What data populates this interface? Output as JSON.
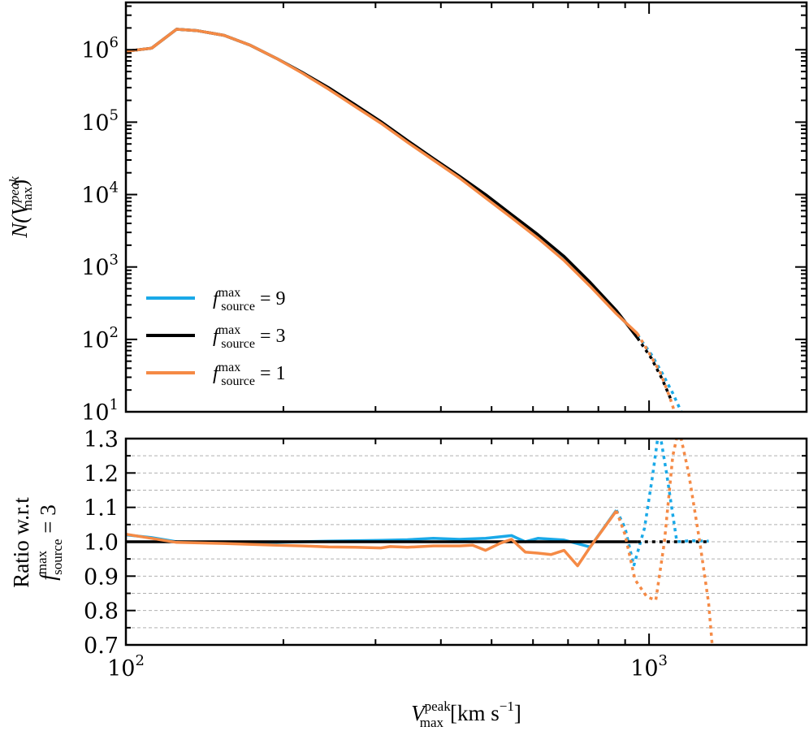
{
  "chart_data": {
    "type": "line",
    "x_scale": "log",
    "xlim": [
      100,
      2000
    ],
    "x_ticks": [
      {
        "value": 100,
        "base": "10",
        "exp": "2"
      },
      {
        "value": 1000,
        "base": "10",
        "exp": "3"
      }
    ],
    "xlabel": {
      "main": "V",
      "sup": "peak",
      "sub": "max",
      "units": "[km s",
      "units_exp": "−1",
      "units_close": "]"
    },
    "panels": [
      {
        "id": "counts",
        "y_scale": "log",
        "ylim": [
          10,
          4500000
        ],
        "y_ticks": [
          {
            "value": 10,
            "base": "10",
            "exp": "1"
          },
          {
            "value": 100,
            "base": "10",
            "exp": "2"
          },
          {
            "value": 1000,
            "base": "10",
            "exp": "3"
          },
          {
            "value": 10000,
            "base": "10",
            "exp": "4"
          },
          {
            "value": 100000,
            "base": "10",
            "exp": "5"
          },
          {
            "value": 1000000,
            "base": "10",
            "exp": "6"
          }
        ],
        "ylabel": {
          "main": "N(V",
          "sup": "peak",
          "sub": "max",
          "close": ")"
        },
        "grid": false
      },
      {
        "id": "ratio",
        "y_scale": "linear",
        "ylim": [
          0.7,
          1.3
        ],
        "y_ticks": [
          {
            "value": 0.7,
            "label": "0.7"
          },
          {
            "value": 0.8,
            "label": "0.8"
          },
          {
            "value": 0.9,
            "label": "0.9"
          },
          {
            "value": 1.0,
            "label": "1.0"
          },
          {
            "value": 1.1,
            "label": "1.1"
          },
          {
            "value": 1.2,
            "label": "1.2"
          },
          {
            "value": 1.3,
            "label": "1.3"
          }
        ],
        "ylabel": {
          "line1": "Ratio w.r.t",
          "f": "f",
          "sup": "max",
          "sub": "source",
          "eq": " = 3"
        },
        "grid": true
      }
    ],
    "legend": {
      "placement": "lower-left",
      "entries": [
        {
          "f": "f",
          "sup": "max",
          "sub": "source",
          "eq": " = 9",
          "series": "f9"
        },
        {
          "f": "f",
          "sup": "max",
          "sub": "source",
          "eq": " = 3",
          "series": "f3"
        },
        {
          "f": "f",
          "sup": "max",
          "sub": "source",
          "eq": " = 1",
          "series": "f1"
        }
      ]
    },
    "series": [
      {
        "name": "f9",
        "label": "f_source^max = 9",
        "color": "#1aa9e8",
        "counts_solid": [
          [
            100,
            950000
          ],
          [
            112,
            1050000
          ],
          [
            125,
            1920000
          ],
          [
            137,
            1830000
          ],
          [
            154,
            1580000
          ],
          [
            173,
            1150000
          ],
          [
            194,
            760000
          ],
          [
            218,
            480000
          ],
          [
            244,
            290000
          ],
          [
            274,
            170000
          ],
          [
            307,
            100000
          ],
          [
            345,
            55000
          ],
          [
            387,
            31000
          ],
          [
            434,
            17500
          ],
          [
            487,
            9500
          ],
          [
            546,
            5000
          ],
          [
            613,
            2600
          ],
          [
            688,
            1280
          ],
          [
            772,
            560
          ],
          [
            866,
            230
          ],
          [
            950,
            115
          ]
        ],
        "counts_dotted": [
          [
            950,
            115
          ],
          [
            1010,
            62
          ],
          [
            1060,
            34
          ],
          [
            1110,
            18
          ],
          [
            1160,
            9
          ]
        ],
        "ratio_solid": [
          [
            100,
            1.02
          ],
          [
            112,
            1.012
          ],
          [
            125,
            1.0
          ],
          [
            154,
            0.998
          ],
          [
            194,
            0.998
          ],
          [
            244,
            1.002
          ],
          [
            307,
            1.004
          ],
          [
            345,
            1.006
          ],
          [
            387,
            1.01
          ],
          [
            434,
            1.007
          ],
          [
            487,
            1.01
          ],
          [
            546,
            1.018
          ],
          [
            580,
            1.0
          ],
          [
            613,
            1.01
          ],
          [
            688,
            1.005
          ],
          [
            772,
            0.985
          ],
          [
            866,
            1.092
          ]
        ],
        "ratio_dotted": [
          [
            866,
            1.092
          ],
          [
            900,
            1.04
          ],
          [
            935,
            0.93
          ],
          [
            980,
            1.04
          ],
          [
            1015,
            1.19
          ],
          [
            1045,
            1.33
          ],
          [
            1080,
            1.2
          ],
          [
            1130,
            1.0
          ],
          [
            1200,
            1.003
          ],
          [
            1300,
            1.002
          ]
        ]
      },
      {
        "name": "f3",
        "label": "f_source^max = 3",
        "color": "#000000",
        "counts_solid": [
          [
            100,
            950000
          ],
          [
            112,
            1050000
          ],
          [
            125,
            1920000
          ],
          [
            137,
            1830000
          ],
          [
            154,
            1580000
          ],
          [
            173,
            1150000
          ],
          [
            194,
            760000
          ],
          [
            218,
            480000
          ],
          [
            244,
            300000
          ],
          [
            274,
            175000
          ],
          [
            307,
            102000
          ],
          [
            345,
            56000
          ],
          [
            387,
            31500
          ],
          [
            434,
            18000
          ],
          [
            487,
            10000
          ],
          [
            546,
            5300
          ],
          [
            613,
            2800
          ],
          [
            688,
            1400
          ],
          [
            772,
            610
          ],
          [
            866,
            250
          ],
          [
            950,
            105
          ]
        ],
        "counts_dotted": [
          [
            950,
            105
          ],
          [
            1010,
            55
          ],
          [
            1060,
            28
          ],
          [
            1100,
            15
          ]
        ],
        "ratio_solid": [
          [
            100,
            1.0
          ],
          [
            950,
            1.0
          ]
        ],
        "ratio_dotted": [
          [
            950,
            1.0
          ],
          [
            1300,
            1.0
          ]
        ]
      },
      {
        "name": "f1",
        "label": "f_source^max = 1",
        "color": "#f58a45",
        "counts_solid": [
          [
            100,
            950000
          ],
          [
            112,
            1050000
          ],
          [
            125,
            1920000
          ],
          [
            137,
            1830000
          ],
          [
            154,
            1580000
          ],
          [
            173,
            1150000
          ],
          [
            194,
            760000
          ],
          [
            218,
            470000
          ],
          [
            244,
            285000
          ],
          [
            274,
            165000
          ],
          [
            307,
            97000
          ],
          [
            345,
            53000
          ],
          [
            387,
            30000
          ],
          [
            434,
            17000
          ],
          [
            487,
            9000
          ],
          [
            546,
            4800
          ],
          [
            613,
            2500
          ],
          [
            688,
            1230
          ],
          [
            772,
            540
          ],
          [
            866,
            225
          ],
          [
            950,
            120
          ]
        ],
        "counts_dotted": [
          [
            950,
            120
          ],
          [
            1000,
            65
          ],
          [
            1050,
            35
          ],
          [
            1095,
            16
          ],
          [
            1130,
            8
          ]
        ],
        "ratio_solid": [
          [
            100,
            1.022
          ],
          [
            112,
            1.01
          ],
          [
            125,
            0.998
          ],
          [
            154,
            0.995
          ],
          [
            194,
            0.99
          ],
          [
            218,
            0.988
          ],
          [
            244,
            0.985
          ],
          [
            274,
            0.984
          ],
          [
            307,
            0.982
          ],
          [
            320,
            0.986
          ],
          [
            345,
            0.984
          ],
          [
            387,
            0.988
          ],
          [
            434,
            0.988
          ],
          [
            460,
            0.99
          ],
          [
            487,
            0.975
          ],
          [
            520,
            0.996
          ],
          [
            546,
            1.007
          ],
          [
            580,
            0.97
          ],
          [
            613,
            0.967
          ],
          [
            650,
            0.963
          ],
          [
            688,
            0.975
          ],
          [
            730,
            0.93
          ],
          [
            772,
            0.985
          ],
          [
            866,
            1.09
          ]
        ],
        "ratio_dotted": [
          [
            866,
            1.09
          ],
          [
            900,
            1.02
          ],
          [
            940,
            0.89
          ],
          [
            990,
            0.84
          ],
          [
            1030,
            0.83
          ],
          [
            1070,
            1.0
          ],
          [
            1110,
            1.25
          ],
          [
            1140,
            1.33
          ],
          [
            1190,
            1.2
          ],
          [
            1250,
            1.0
          ],
          [
            1300,
            0.82
          ],
          [
            1320,
            0.7
          ]
        ]
      }
    ]
  }
}
